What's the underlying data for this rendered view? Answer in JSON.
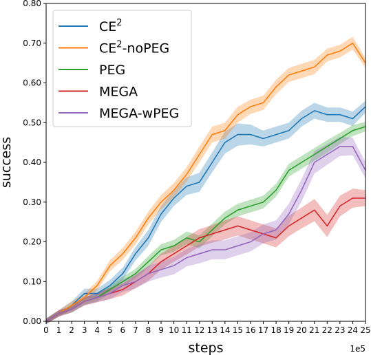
{
  "chart_data": {
    "type": "line",
    "xlabel": "steps",
    "ylabel": "success",
    "x_offset_label": "1e5",
    "xlim": [
      0,
      25
    ],
    "ylim": [
      0,
      0.8
    ],
    "xticks": [
      0,
      1,
      2,
      3,
      4,
      5,
      6,
      7,
      8,
      9,
      10,
      11,
      12,
      13,
      14,
      15,
      16,
      17,
      18,
      19,
      20,
      21,
      22,
      23,
      24,
      25
    ],
    "xtick_labels": [
      "0",
      "1",
      "2",
      "3",
      "4",
      "5",
      "6",
      "7",
      "8",
      "9",
      "10",
      "11",
      "12",
      "13",
      "14",
      "15",
      "16",
      "17",
      "18",
      "19",
      "20",
      "21",
      "22",
      "23",
      "24",
      "25"
    ],
    "yticks": [
      0,
      0.1,
      0.2,
      0.3,
      0.4,
      0.5,
      0.6,
      0.7,
      0.8
    ],
    "ytick_labels": [
      "0.00",
      "0.10",
      "0.20",
      "0.30",
      "0.40",
      "0.50",
      "0.60",
      "0.70",
      "0.80"
    ],
    "legend_position": "top-left",
    "grid": false,
    "shaded_band": true,
    "x": [
      0,
      1,
      2,
      3,
      4,
      5,
      6,
      7,
      8,
      9,
      10,
      11,
      12,
      13,
      14,
      15,
      16,
      17,
      18,
      19,
      20,
      21,
      22,
      23,
      24,
      25
    ],
    "series": [
      {
        "name_main": "CE",
        "name_sup": "2",
        "name_suffix": "",
        "color": "#1f77b4",
        "values": [
          0.0,
          0.02,
          0.04,
          0.07,
          0.07,
          0.09,
          0.12,
          0.17,
          0.21,
          0.27,
          0.31,
          0.34,
          0.35,
          0.4,
          0.45,
          0.47,
          0.47,
          0.46,
          0.47,
          0.48,
          0.51,
          0.53,
          0.52,
          0.52,
          0.51,
          0.54
        ],
        "band": [
          0.008,
          0.008,
          0.01,
          0.012,
          0.012,
          0.014,
          0.015,
          0.017,
          0.02,
          0.02,
          0.02,
          0.022,
          0.024,
          0.025,
          0.028,
          0.028,
          0.025,
          0.02,
          0.02,
          0.02,
          0.02,
          0.02,
          0.018,
          0.018,
          0.018,
          0.015
        ]
      },
      {
        "name_main": "CE",
        "name_sup": "2",
        "name_suffix": "-noPEG",
        "color": "#ff7f0e",
        "values": [
          0.0,
          0.02,
          0.04,
          0.06,
          0.09,
          0.14,
          0.17,
          0.21,
          0.26,
          0.3,
          0.33,
          0.37,
          0.42,
          0.47,
          0.48,
          0.52,
          0.54,
          0.55,
          0.59,
          0.62,
          0.63,
          0.64,
          0.67,
          0.68,
          0.7,
          0.65
        ],
        "band": [
          0.006,
          0.008,
          0.01,
          0.01,
          0.012,
          0.014,
          0.015,
          0.016,
          0.016,
          0.018,
          0.018,
          0.018,
          0.02,
          0.02,
          0.02,
          0.02,
          0.018,
          0.018,
          0.018,
          0.018,
          0.018,
          0.018,
          0.016,
          0.016,
          0.016,
          0.012
        ]
      },
      {
        "name_main": "PEG",
        "name_sup": "",
        "name_suffix": "",
        "color": "#2ca02c",
        "values": [
          0.0,
          0.02,
          0.03,
          0.05,
          0.06,
          0.08,
          0.1,
          0.12,
          0.15,
          0.18,
          0.19,
          0.21,
          0.2,
          0.23,
          0.26,
          0.28,
          0.29,
          0.3,
          0.33,
          0.38,
          0.4,
          0.42,
          0.44,
          0.46,
          0.48,
          0.49
        ],
        "band": [
          0.006,
          0.006,
          0.008,
          0.008,
          0.01,
          0.01,
          0.012,
          0.012,
          0.014,
          0.014,
          0.015,
          0.016,
          0.016,
          0.016,
          0.016,
          0.016,
          0.016,
          0.016,
          0.016,
          0.016,
          0.016,
          0.016,
          0.016,
          0.014,
          0.014,
          0.012
        ]
      },
      {
        "name_main": "MEGA",
        "name_sup": "",
        "name_suffix": "",
        "color": "#d62728",
        "values": [
          0.0,
          0.02,
          0.03,
          0.05,
          0.06,
          0.07,
          0.08,
          0.1,
          0.12,
          0.15,
          0.17,
          0.19,
          0.21,
          0.22,
          0.23,
          0.24,
          0.23,
          0.22,
          0.21,
          0.24,
          0.26,
          0.28,
          0.24,
          0.29,
          0.31,
          0.31
        ],
        "band": [
          0.006,
          0.008,
          0.008,
          0.01,
          0.012,
          0.014,
          0.015,
          0.016,
          0.018,
          0.02,
          0.02,
          0.022,
          0.022,
          0.022,
          0.024,
          0.024,
          0.024,
          0.024,
          0.024,
          0.026,
          0.026,
          0.028,
          0.028,
          0.026,
          0.024,
          0.02
        ]
      },
      {
        "name_main": "MEGA-wPEG",
        "name_sup": "",
        "name_suffix": "",
        "color": "#9467bd",
        "values": [
          0.0,
          0.02,
          0.03,
          0.05,
          0.06,
          0.07,
          0.09,
          0.1,
          0.12,
          0.13,
          0.14,
          0.16,
          0.17,
          0.18,
          0.18,
          0.19,
          0.2,
          0.22,
          0.23,
          0.27,
          0.33,
          0.4,
          0.42,
          0.44,
          0.44,
          0.38
        ],
        "band": [
          0.006,
          0.008,
          0.008,
          0.01,
          0.012,
          0.014,
          0.016,
          0.018,
          0.02,
          0.02,
          0.022,
          0.022,
          0.024,
          0.024,
          0.024,
          0.024,
          0.024,
          0.024,
          0.024,
          0.026,
          0.028,
          0.028,
          0.026,
          0.024,
          0.022,
          0.02
        ]
      }
    ]
  }
}
